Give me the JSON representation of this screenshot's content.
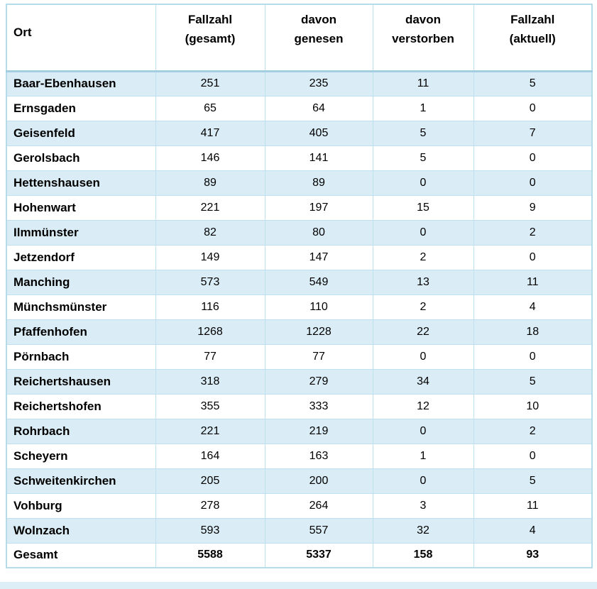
{
  "header": {
    "cols": [
      {
        "line1": "Ort",
        "line2": ""
      },
      {
        "line1": "Fallzahl",
        "line2": "(gesamt)"
      },
      {
        "line1": "davon",
        "line2": "genesen"
      },
      {
        "line1": "davon",
        "line2": "verstorben"
      },
      {
        "line1": "Fallzahl",
        "line2": "(aktuell)"
      }
    ]
  },
  "chart_data": {
    "type": "table",
    "columns": [
      "Ort",
      "Fallzahl (gesamt)",
      "davon genesen",
      "davon verstorben",
      "Fallzahl (aktuell)"
    ],
    "rows": [
      [
        "Baar-Ebenhausen",
        251,
        235,
        11,
        5
      ],
      [
        "Ernsgaden",
        65,
        64,
        1,
        0
      ],
      [
        "Geisenfeld",
        417,
        405,
        5,
        7
      ],
      [
        "Gerolsbach",
        146,
        141,
        5,
        0
      ],
      [
        "Hettenshausen",
        89,
        89,
        0,
        0
      ],
      [
        "Hohenwart",
        221,
        197,
        15,
        9
      ],
      [
        "Ilmmünster",
        82,
        80,
        0,
        2
      ],
      [
        "Jetzendorf",
        149,
        147,
        2,
        0
      ],
      [
        "Manching",
        573,
        549,
        13,
        11
      ],
      [
        "Münchsmünster",
        116,
        110,
        2,
        4
      ],
      [
        "Pfaffenhofen",
        1268,
        1228,
        22,
        18
      ],
      [
        "Pörnbach",
        77,
        77,
        0,
        0
      ],
      [
        "Reichertshausen",
        318,
        279,
        34,
        5
      ],
      [
        "Reichertshofen",
        355,
        333,
        12,
        10
      ],
      [
        "Rohrbach",
        221,
        219,
        0,
        2
      ],
      [
        "Scheyern",
        164,
        163,
        1,
        0
      ],
      [
        "Schweitenkirchen",
        205,
        200,
        0,
        5
      ],
      [
        "Vohburg",
        278,
        264,
        3,
        11
      ],
      [
        "Wolnzach",
        593,
        557,
        32,
        4
      ]
    ],
    "total_row": [
      "Gesamt",
      5588,
      5337,
      158,
      93
    ]
  },
  "colors": {
    "row_highlight": "#daecf5",
    "cell_border": "#bfe0ed",
    "outer_border": "#b6dbe9",
    "header_separator": "#a2cedf",
    "bottom_strip": "#ddeef6",
    "text": "#000000"
  }
}
